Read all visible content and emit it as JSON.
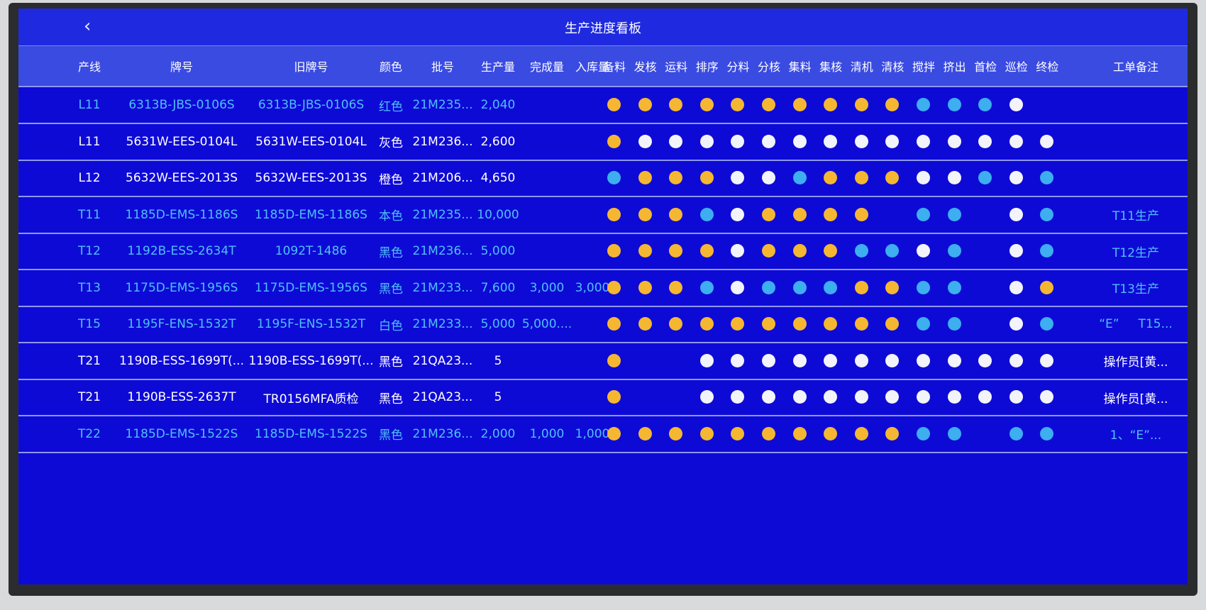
{
  "title": "生产进度看板",
  "back_icon": "chevron-left-icon",
  "colors": {
    "done": "#f5b731",
    "in_progress": "#3daef0",
    "pending": "#f2f4fa",
    "screen": "#0e0ad6"
  },
  "headers": {
    "line": "产线",
    "code": "牌号",
    "old_code": "旧牌号",
    "color": "颜色",
    "batch": "批号",
    "qty": "生产量",
    "done": "完成量",
    "stock_in": "入库量",
    "note": "工单备注"
  },
  "stages": [
    "备料",
    "发核",
    "运料",
    "排序",
    "分料",
    "分核",
    "集料",
    "集核",
    "清机",
    "清核",
    "搅拌",
    "挤出",
    "首检",
    "巡检",
    "终检"
  ],
  "status_legend": {
    "o": "orange",
    "b": "blue",
    "w": "white",
    "-": "none"
  },
  "rows": [
    {
      "line": "L11",
      "code": "6313B-JBS-0106S",
      "old_code": "6313B-JBS-0106S",
      "color": "红色",
      "batch": "21M235...",
      "qty": "2,040",
      "done": "",
      "stock_in": "",
      "status": "oooooooooobbbw-",
      "note": "",
      "text": "blue"
    },
    {
      "line": "L11",
      "code": "5631W-EES-0104L",
      "old_code": "5631W-EES-0104L",
      "color": "灰色",
      "batch": "21M236...",
      "qty": "2,600",
      "done": "",
      "stock_in": "",
      "status": "owwwwwwwwwwwwww",
      "note": "",
      "text": "white"
    },
    {
      "line": "L12",
      "code": "5632W-EES-2013S",
      "old_code": "5632W-EES-2013S",
      "color": "橙色",
      "batch": "21M206...",
      "qty": "4,650",
      "done": "",
      "stock_in": "",
      "status": "booowwbooowwbwb",
      "note": "",
      "text": "white"
    },
    {
      "line": "T11",
      "code": "1185D-EMS-1186S",
      "old_code": "1185D-EMS-1186S",
      "color": "本色",
      "batch": "21M235...",
      "qty": "10,000",
      "done": "",
      "stock_in": "",
      "status": "ooobwoooo-bb-wb",
      "note": "T11生产",
      "text": "blue"
    },
    {
      "line": "T12",
      "code": "1192B-ESS-2634T",
      "old_code": "1092T-1486",
      "color": "黑色",
      "batch": "21M236...",
      "qty": "5,000",
      "done": "",
      "stock_in": "",
      "status": "oooowooobbwb-wb",
      "note": "T12生产",
      "text": "blue"
    },
    {
      "line": "T13",
      "code": "1175D-EMS-1956S",
      "old_code": "1175D-EMS-1956S",
      "color": "黑色",
      "batch": "21M233...",
      "qty": "7,600",
      "done": "3,000",
      "stock_in": "3,000",
      "status": "ooobwbbboobb-wo",
      "note": "T13生产",
      "text": "blue"
    },
    {
      "line": "T15",
      "code": "1195F-ENS-1532T",
      "old_code": "1195F-ENS-1532T",
      "color": "白色",
      "batch": "21M233...",
      "qty": "5,000",
      "done": "5,000....",
      "stock_in": "",
      "status": "oooooooooobb-wb",
      "note": "“E”     T15...",
      "text": "blue"
    },
    {
      "line": "T21",
      "code": "1190B-ESS-1699T(...",
      "old_code": "1190B-ESS-1699T(...",
      "color": "黑色",
      "batch": "21QA23...",
      "qty": "5",
      "done": "",
      "stock_in": "",
      "status": "o--wwwwwwwwwwww",
      "note": "操作员[黄...",
      "text": "white"
    },
    {
      "line": "T21",
      "code": "1190B-ESS-2637T",
      "old_code": "TR0156MFA质检",
      "color": "黑色",
      "batch": "21QA23...",
      "qty": "5",
      "done": "",
      "stock_in": "",
      "status": "o--wwwwwwwwwwww",
      "note": "操作员[黄...",
      "text": "white"
    },
    {
      "line": "T22",
      "code": "1185D-EMS-1522S",
      "old_code": "1185D-EMS-1522S",
      "color": "黑色",
      "batch": "21M236...",
      "qty": "2,000",
      "done": "1,000",
      "stock_in": "1,000",
      "status": "oooooooooobb-bb",
      "note": "1、“E”...",
      "text": "blue"
    }
  ]
}
